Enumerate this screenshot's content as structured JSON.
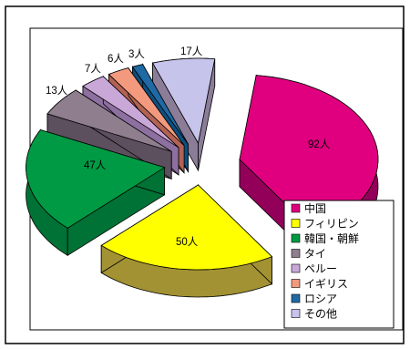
{
  "chart_data": {
    "type": "pie",
    "style": "3d-exploded",
    "title": "",
    "slices": [
      {
        "category": "中国",
        "value": 92,
        "label": "92人",
        "color": "#e0007f",
        "dark": "#93005a"
      },
      {
        "category": "フィリピン",
        "value": 50,
        "label": "50人",
        "color": "#ffff00",
        "dark": "#a39233"
      },
      {
        "category": "韓国・朝鮮",
        "value": 47,
        "label": "47人",
        "color": "#009a44",
        "dark": "#007235"
      },
      {
        "category": "タイ",
        "value": 13,
        "label": "13人",
        "color": "#8f7f8e",
        "dark": "#5c4f5e"
      },
      {
        "category": "ペルー",
        "value": 7,
        "label": "7人",
        "color": "#c9a8d8",
        "dark": "#8d70a0"
      },
      {
        "category": "イギリス",
        "value": 6,
        "label": "6人",
        "color": "#f39a7e",
        "dark": "#b26252"
      },
      {
        "category": "ロシア",
        "value": 3,
        "label": "3人",
        "color": "#1f6aa5",
        "dark": "#0c4f80"
      },
      {
        "category": "その他",
        "value": 17,
        "label": "17人",
        "color": "#c7c4eb",
        "dark": "#8b7d97"
      }
    ],
    "legend_position": "bottom-right"
  }
}
